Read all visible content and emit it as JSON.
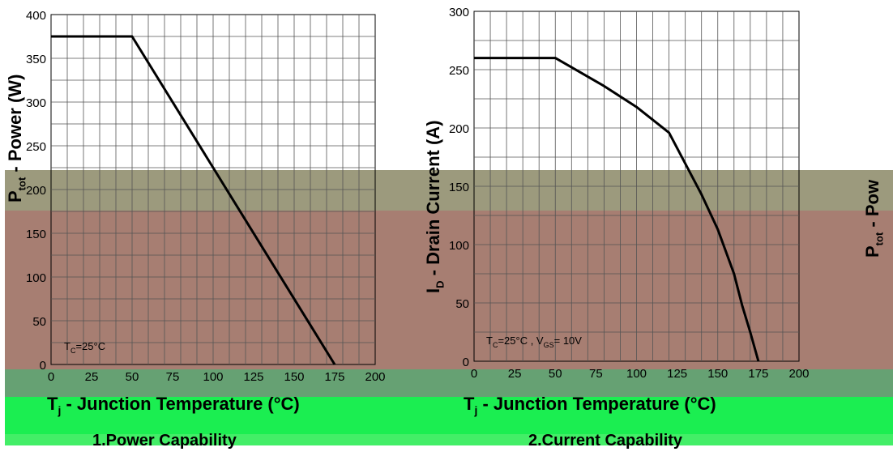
{
  "charts": [
    {
      "type": "line",
      "title": "",
      "caption": "1.Power Capability",
      "ylabel": "P",
      "ylabel_sub": "tot",
      "ylabel_text": " - Power (W)",
      "xlabel": "T",
      "xlabel_sub": "j",
      "xlabel_text": " - Junction Temperature (°C)",
      "annotation": "T",
      "annotation_sub": "C",
      "annotation_text": "=25°C",
      "xlim": [
        0,
        200
      ],
      "ylim": [
        0,
        400
      ],
      "x_tick_labels": [
        "0",
        "25",
        "50",
        "75",
        "100",
        "125",
        "150",
        "175",
        "200"
      ],
      "y_tick_labels": [
        "0",
        "50",
        "100",
        "150",
        "200",
        "250",
        "300",
        "350",
        "400"
      ],
      "grid": true
    },
    {
      "type": "line",
      "title": "",
      "caption": "2.Current Capability",
      "ylabel": "I",
      "ylabel_sub": "D",
      "ylabel_text": " - Drain Current (A)",
      "xlabel": "T",
      "xlabel_sub": "j",
      "xlabel_text": " - Junction Temperature (°C)",
      "annotation": "T",
      "annotation_sub": "C",
      "annotation_text": "=25°C , V",
      "annotation_sub2": "GS",
      "annotation_text2": "= 10V",
      "xlim": [
        0,
        200
      ],
      "ylim": [
        0,
        300
      ],
      "x_tick_labels": [
        "0",
        "25",
        "50",
        "75",
        "100",
        "125",
        "150",
        "175",
        "200"
      ],
      "y_tick_labels": [
        "0",
        "50",
        "100",
        "150",
        "200",
        "250",
        "300"
      ],
      "grid": true
    }
  ],
  "chart_data": [
    {
      "type": "line",
      "title": "",
      "xlabel": "Tj - Junction Temperature (°C)",
      "ylabel": "Ptot - Power (W)",
      "xlim": [
        0,
        200
      ],
      "ylim": [
        0,
        400
      ],
      "series": [
        {
          "x": [
            0,
            50,
            175
          ],
          "y": [
            375,
            375,
            0
          ]
        }
      ]
    },
    {
      "type": "line",
      "title": "",
      "xlabel": "Tj - Junction Temperature (°C)",
      "ylabel": "ID - Drain Current (A)",
      "xlim": [
        0,
        200
      ],
      "ylim": [
        0,
        300
      ],
      "series": [
        {
          "x": [
            0,
            50,
            60,
            80,
            100,
            120,
            140,
            150,
            160,
            165,
            170,
            175
          ],
          "y": [
            260,
            260,
            252,
            236,
            218,
            196,
            143,
            113,
            75,
            48,
            25,
            0
          ]
        }
      ]
    }
  ],
  "ylabel_3": "P",
  "ylabel_3_sub": "tot",
  "ylabel_3_text": " - Pow"
}
